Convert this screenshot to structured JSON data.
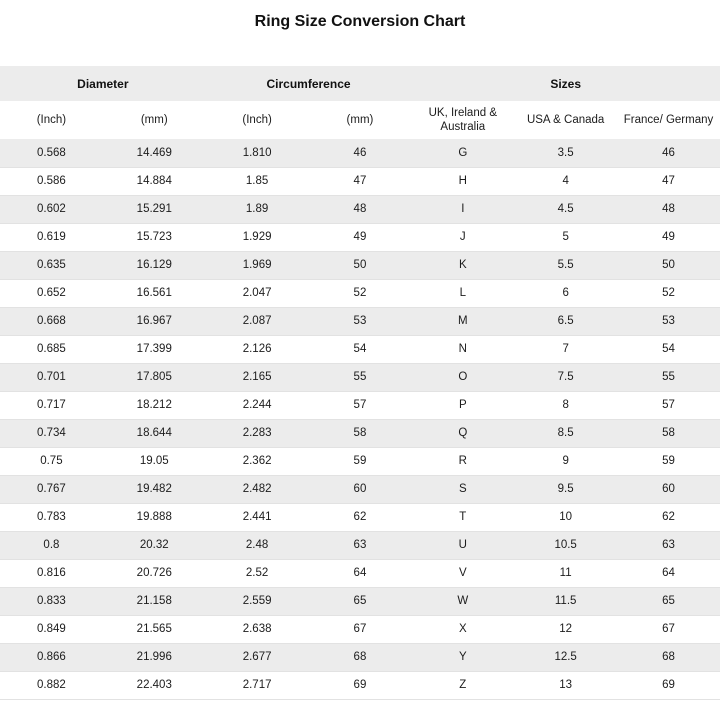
{
  "title": "Ring Size Conversion Chart",
  "colors": {
    "stripe_row": "#ececec",
    "header_band": "#ececec",
    "row_border": "#e2e2e2",
    "text": "#1c1c1c",
    "background": "#ffffff"
  },
  "chart_data": {
    "type": "table",
    "title": "Ring Size Conversion Chart",
    "group_headers": [
      {
        "label": "Diameter",
        "colspan": 2
      },
      {
        "label": "Circumference",
        "colspan": 2
      },
      {
        "label": "Sizes",
        "colspan": 3
      }
    ],
    "sub_headers": [
      "(Inch)",
      "(mm)",
      "(Inch)",
      "(mm)",
      "UK, Ireland & Australia",
      "USA & Canada",
      "France/ Germany"
    ],
    "columns": [
      "Diameter (Inch)",
      "Diameter (mm)",
      "Circumference (Inch)",
      "Circumference (mm)",
      "UK, Ireland & Australia",
      "USA & Canada",
      "France/ Germany"
    ],
    "rows": [
      [
        "0.568",
        "14.469",
        "1.810",
        "46",
        "G",
        "3.5",
        "46"
      ],
      [
        "0.586",
        "14.884",
        "1.85",
        "47",
        "H",
        "4",
        "47"
      ],
      [
        "0.602",
        "15.291",
        "1.89",
        "48",
        "I",
        "4.5",
        "48"
      ],
      [
        "0.619",
        "15.723",
        "1.929",
        "49",
        "J",
        "5",
        "49"
      ],
      [
        "0.635",
        "16.129",
        "1.969",
        "50",
        "K",
        "5.5",
        "50"
      ],
      [
        "0.652",
        "16.561",
        "2.047",
        "52",
        "L",
        "6",
        "52"
      ],
      [
        "0.668",
        "16.967",
        "2.087",
        "53",
        "M",
        "6.5",
        "53"
      ],
      [
        "0.685",
        "17.399",
        "2.126",
        "54",
        "N",
        "7",
        "54"
      ],
      [
        "0.701",
        "17.805",
        "2.165",
        "55",
        "O",
        "7.5",
        "55"
      ],
      [
        "0.717",
        "18.212",
        "2.244",
        "57",
        "P",
        "8",
        "57"
      ],
      [
        "0.734",
        "18.644",
        "2.283",
        "58",
        "Q",
        "8.5",
        "58"
      ],
      [
        "0.75",
        "19.05",
        "2.362",
        "59",
        "R",
        "9",
        "59"
      ],
      [
        "0.767",
        "19.482",
        "2.482",
        "60",
        "S",
        "9.5",
        "60"
      ],
      [
        "0.783",
        "19.888",
        "2.441",
        "62",
        "T",
        "10",
        "62"
      ],
      [
        "0.8",
        "20.32",
        "2.48",
        "63",
        "U",
        "10.5",
        "63"
      ],
      [
        "0.816",
        "20.726",
        "2.52",
        "64",
        "V",
        "11",
        "64"
      ],
      [
        "0.833",
        "21.158",
        "2.559",
        "65",
        "W",
        "11.5",
        "65"
      ],
      [
        "0.849",
        "21.565",
        "2.638",
        "67",
        "X",
        "12",
        "67"
      ],
      [
        "0.866",
        "21.996",
        "2.677",
        "68",
        "Y",
        "12.5",
        "68"
      ],
      [
        "0.882",
        "22.403",
        "2.717",
        "69",
        "Z",
        "13",
        "69"
      ]
    ]
  }
}
